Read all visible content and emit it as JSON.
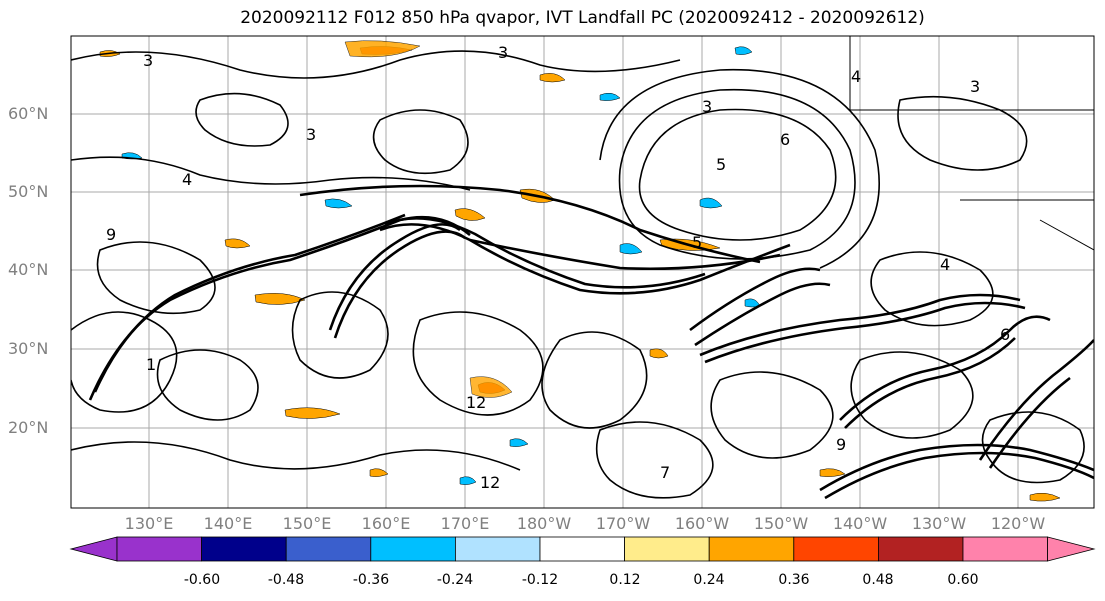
{
  "title": "2020092112 F012 850 hPa qvapor, IVT Landfall PC (2020092412 - 2020092612)",
  "lat_labels": [
    "60°N",
    "50°N",
    "40°N",
    "30°N",
    "20°N"
  ],
  "lon_labels": [
    "130°E",
    "140°E",
    "150°E",
    "160°E",
    "170°E",
    "180°W",
    "170°W",
    "160°W",
    "150°W",
    "140°W",
    "130°W",
    "120°W"
  ],
  "colorbar": {
    "colors": [
      "#9932cc",
      "#00008b",
      "#3a5fcd",
      "#00bfff",
      "#b0e2ff",
      "#ffffff",
      "#ffec8b",
      "#ffa500",
      "#ff4500",
      "#b22222",
      "#ff82ab"
    ],
    "tick_labels": [
      "-0.60",
      "-0.48",
      "-0.36",
      "-0.24",
      "-0.12",
      "0.12",
      "0.24",
      "0.36",
      "0.48",
      "0.60"
    ]
  },
  "contour_labels": [
    "3",
    "3",
    "3",
    "3",
    "4",
    "4",
    "5",
    "5",
    "6",
    "6",
    "7",
    "9",
    "9",
    "12",
    "12",
    "1",
    "4",
    "3"
  ]
}
